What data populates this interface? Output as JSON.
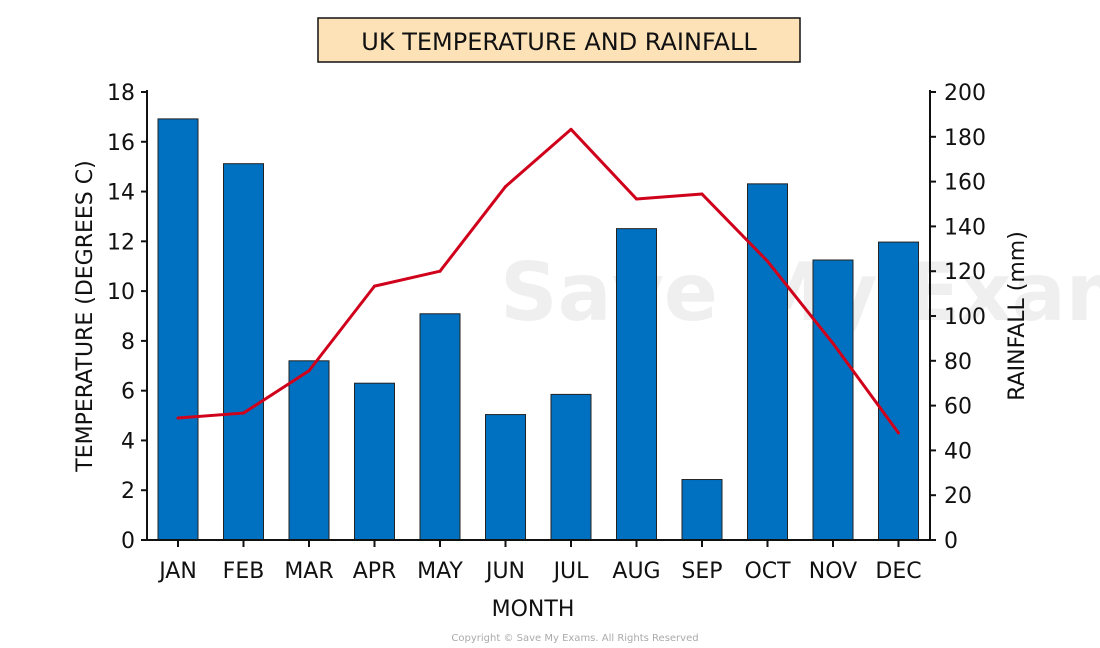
{
  "chart_data": {
    "type": "bar+line",
    "title": "UK TEMPERATURE AND RAINFALL",
    "xlabel": "MONTH",
    "ylabel_left": "TEMPERATURE (DEGREES C)",
    "ylabel_right": "RAINFALL (mm)",
    "categories": [
      "JAN",
      "FEB",
      "MAR",
      "APR",
      "MAY",
      "JUN",
      "JUL",
      "AUG",
      "SEP",
      "OCT",
      "NOV",
      "DEC"
    ],
    "ylim_left": [
      0,
      18
    ],
    "yticks_left": [
      0,
      2,
      4,
      6,
      8,
      10,
      12,
      14,
      16,
      18
    ],
    "ylim_right": [
      0,
      200
    ],
    "yticks_right": [
      0,
      20,
      40,
      60,
      80,
      100,
      120,
      140,
      160,
      180,
      200
    ],
    "series": [
      {
        "name": "Rainfall (mm)",
        "type": "bar",
        "axis": "right",
        "color": "#0070c0",
        "values": [
          188,
          168,
          80,
          70,
          101,
          56,
          65,
          139,
          27,
          159,
          125,
          133
        ]
      },
      {
        "name": "Temperature (degrees C)",
        "type": "line",
        "axis": "left",
        "color": "#d0021b",
        "values": [
          4.9,
          5.1,
          6.8,
          10.2,
          10.8,
          14.2,
          16.5,
          13.7,
          13.9,
          11.2,
          7.9,
          4.3
        ]
      }
    ],
    "grid": false
  },
  "title_box_color": "#fde2b8",
  "watermark": "Save My Exams",
  "copyright": "Copyright © Save My Exams. All Rights Reserved"
}
